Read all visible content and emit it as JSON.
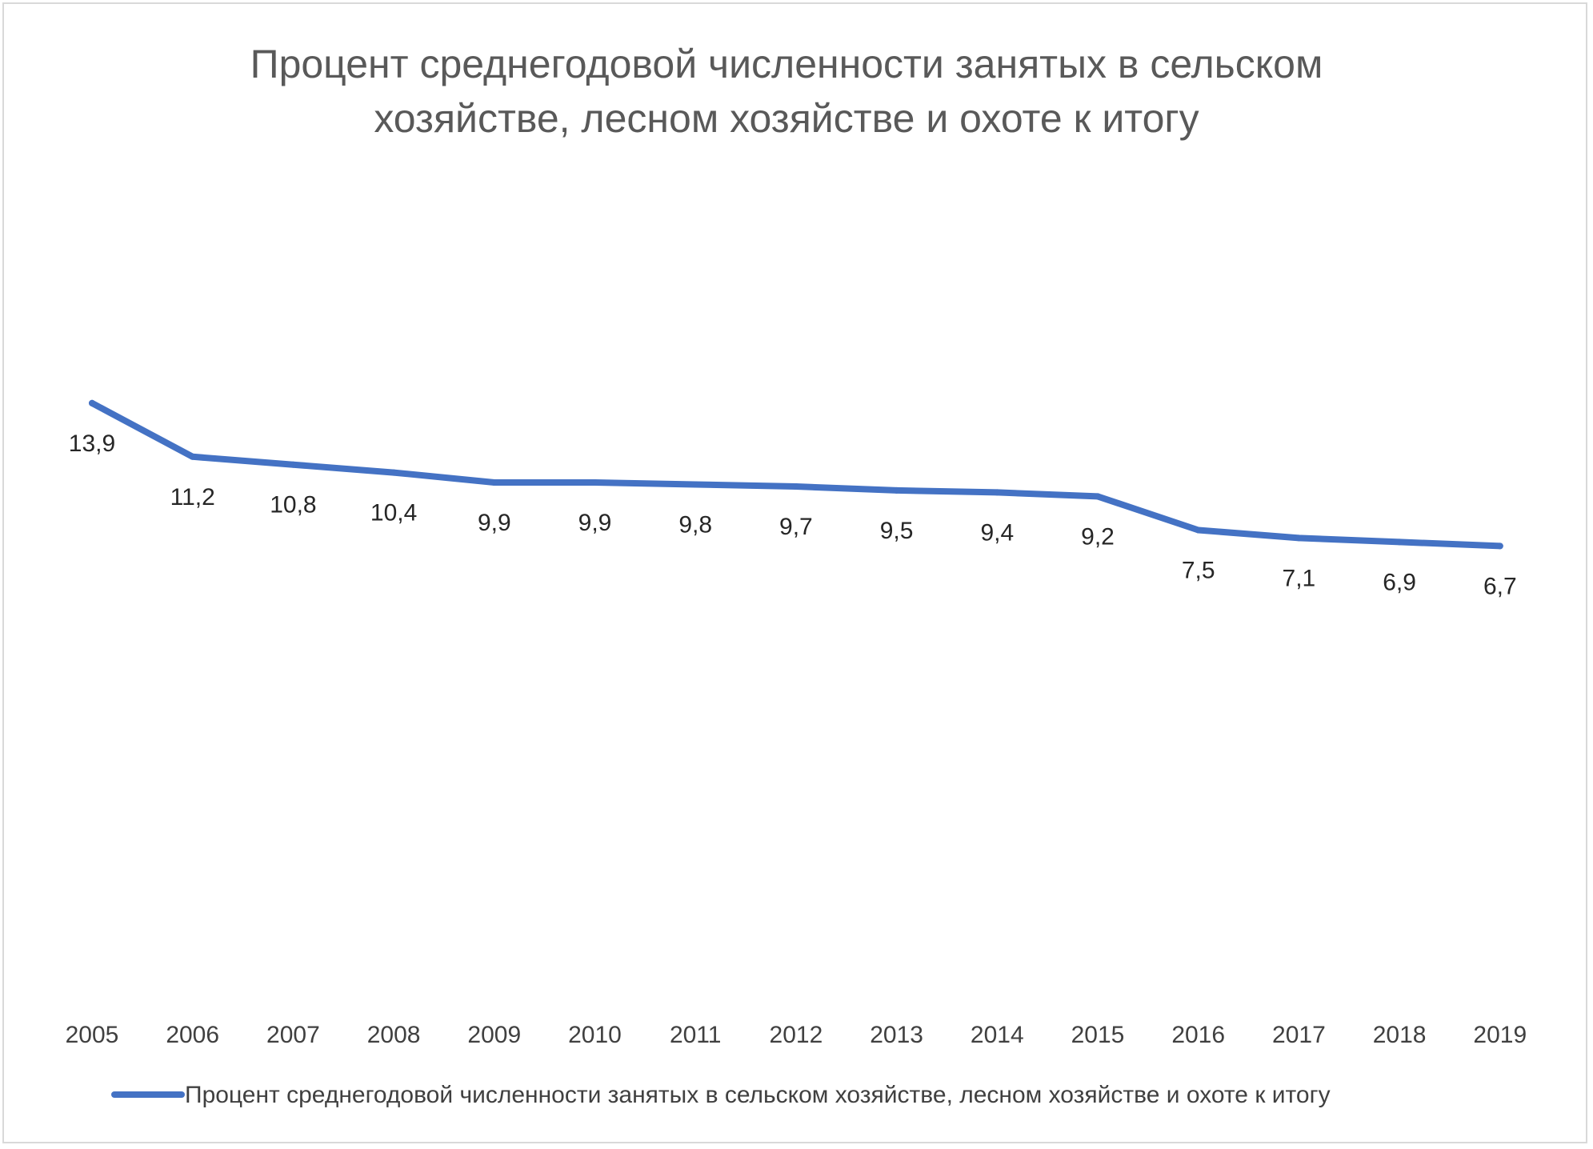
{
  "chart_data": {
    "type": "line",
    "title_lines": [
      "Процент среднегодовой численности занятых в сельском",
      "хозяйстве, лесном хозяйстве и охоте к итогу"
    ],
    "categories": [
      "2005",
      "2006",
      "2007",
      "2008",
      "2009",
      "2010",
      "2011",
      "2012",
      "2013",
      "2014",
      "2015",
      "2016",
      "2017",
      "2018",
      "2019"
    ],
    "series": [
      {
        "name": "Процент среднегодовой численности занятых в сельском хозяйстве, лесном хозяйстве и охоте к итогу",
        "values": [
          13.9,
          11.2,
          10.8,
          10.4,
          9.9,
          9.9,
          9.8,
          9.7,
          9.5,
          9.4,
          9.2,
          7.5,
          7.1,
          6.9,
          6.7
        ],
        "labels": [
          "13,9",
          "11,2",
          "10,8",
          "10,4",
          "9,9",
          "9,9",
          "9,8",
          "9,7",
          "9,5",
          "9,4",
          "9,2",
          "7,5",
          "7,1",
          "6,9",
          "6,7"
        ],
        "color": "#4472c4"
      }
    ],
    "legend_position": "bottom",
    "grid": false
  }
}
